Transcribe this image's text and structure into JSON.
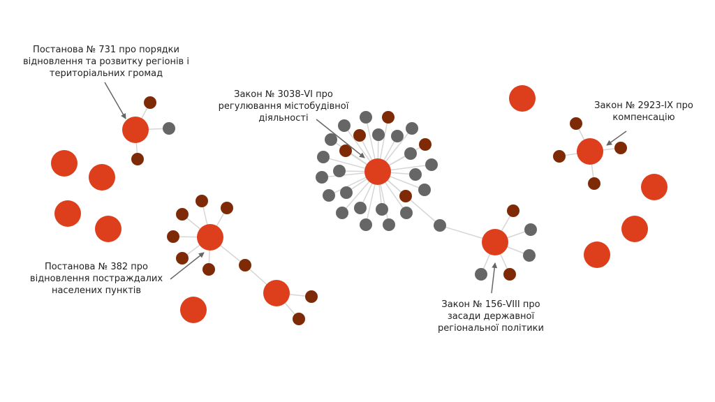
{
  "colors": {
    "hub": "#dd3f1d",
    "leaf_dark": "#7f2a07",
    "leaf_gray": "#666666",
    "edge": "#d6d6d6",
    "arrow": "#666666",
    "text": "#222222"
  },
  "annotations": {
    "p731": "Постанова № 731 про порядки\nвідновлення та розвитку регіонів і\nтериторіальних громад",
    "law3038": "Закон № 3038-VI про\nрегулювання містобудівної\nдіяльності",
    "law2923": "Закон № 2923-IX про\nкомпенсацію",
    "p382": "Постанова № 382 про\nвідновлення постраждалих\nнаселених пунктів",
    "law156": "Закон № 156-VIII про\nзасади державної\nрегіональної політики"
  }
}
